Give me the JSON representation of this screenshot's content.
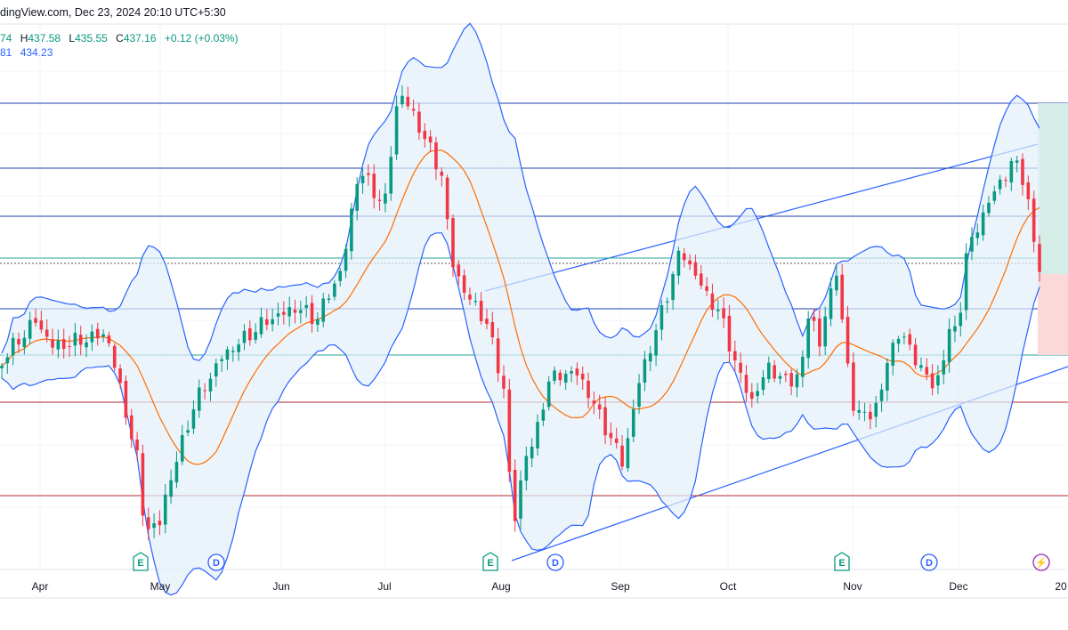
{
  "header": {
    "source": "dingView.com, Dec 23, 2024 20:10 UTC+5:30"
  },
  "ohlc": {
    "open_tail": "74",
    "high_label": "H",
    "high": "437.58",
    "low_label": "L",
    "low": "435.55",
    "close_label": "C",
    "close": "437.16",
    "change": "+0.12 (+0.03%)"
  },
  "indicator": {
    "value_a": "81",
    "value_b": "434.23"
  },
  "colors": {
    "up": "#089981",
    "down": "#f23645",
    "band_line": "#2962ff",
    "band_fill": "#e3f0fa",
    "basis": "#ff6d00",
    "hline_blue": "#1c3fb0",
    "hline_red": "#b2282e",
    "hline_teal": "#26a69a",
    "target_fill": "#d5efe8",
    "stop_fill": "#fbd9da"
  },
  "chart_data": {
    "type": "candlestick",
    "indicators": [
      "bollinger-bands"
    ],
    "x_ticks": [
      "Apr",
      "May",
      "Jun",
      "Jul",
      "Aug",
      "Sep",
      "Oct",
      "Nov",
      "Dec",
      "20"
    ],
    "events": [
      {
        "type": "earnings",
        "label": "E",
        "month": "May"
      },
      {
        "type": "dividend",
        "label": "D",
        "month": "May"
      },
      {
        "type": "earnings",
        "label": "E",
        "month": "Aug"
      },
      {
        "type": "dividend",
        "label": "D",
        "month": "Aug"
      },
      {
        "type": "earnings",
        "label": "E",
        "month": "Nov"
      },
      {
        "type": "dividend",
        "label": "D",
        "month": "Nov"
      },
      {
        "type": "alert",
        "label": "⚡",
        "month": "Dec"
      }
    ],
    "candles_total": 185,
    "last_close": 437.16
  }
}
